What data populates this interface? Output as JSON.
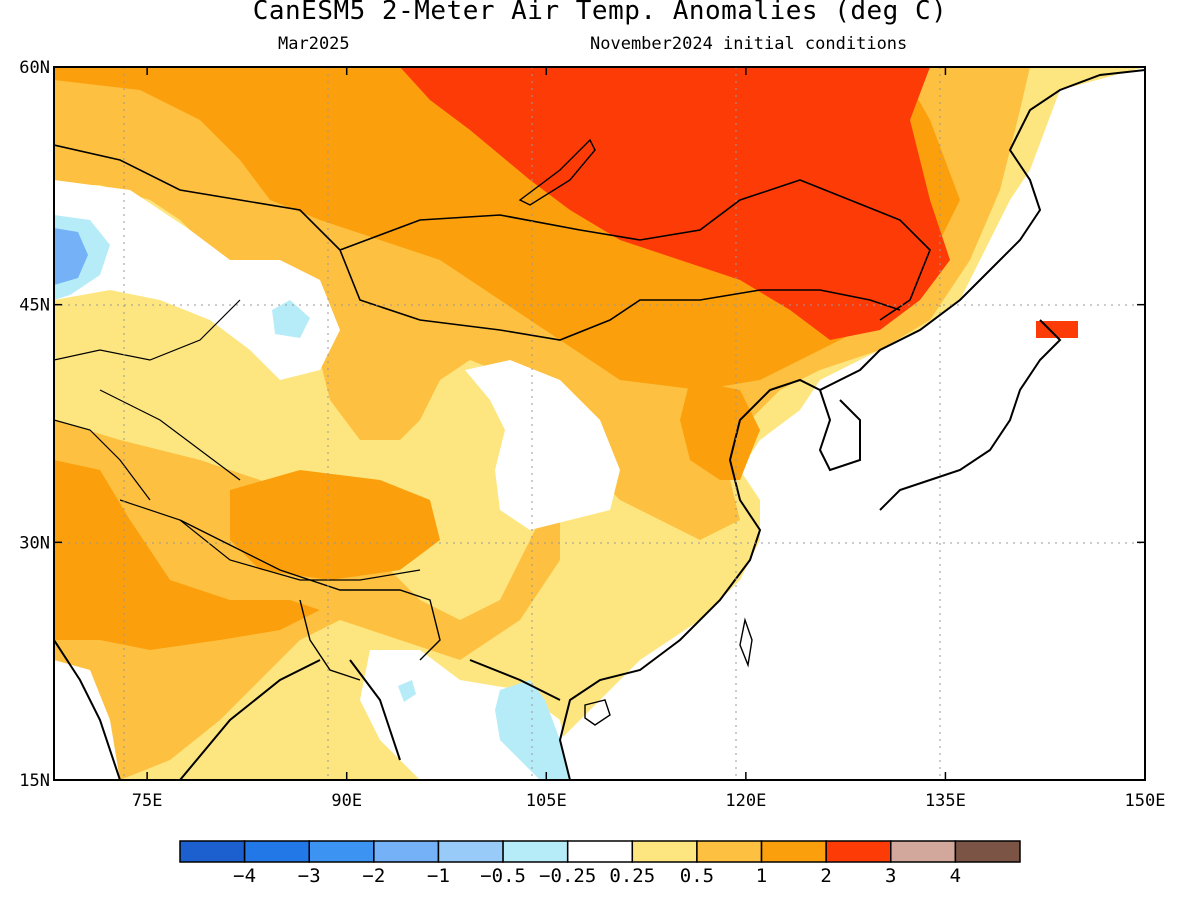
{
  "header": {
    "title": "CanESM5 2-Meter Air Temp. Anomalies (deg C)",
    "valid_month": "Mar2025",
    "initial_conditions": "November2024 initial conditions"
  },
  "map": {
    "lon_range": [
      68,
      150
    ],
    "lat_range": [
      15,
      60
    ],
    "lon_ticks": [
      {
        "value": 75,
        "label": "75E"
      },
      {
        "value": 90,
        "label": "90E"
      },
      {
        "value": 105,
        "label": "105E"
      },
      {
        "value": 120,
        "label": "120E"
      },
      {
        "value": 135,
        "label": "135E"
      },
      {
        "value": 150,
        "label": "150E"
      }
    ],
    "lat_ticks": [
      {
        "value": 60,
        "label": "60N"
      },
      {
        "value": 45,
        "label": "45N"
      },
      {
        "value": 30,
        "label": "30N"
      },
      {
        "value": 15,
        "label": "15N"
      }
    ],
    "gridlines": "dotted"
  },
  "colorbar": {
    "colors": [
      "#1c5fcf",
      "#2378e8",
      "#3c93f2",
      "#74b1f6",
      "#98cbf8",
      "#b6ecf8",
      "#ffffff",
      "#fde680",
      "#fdc040",
      "#fba00c",
      "#fd3b07",
      "#d2a89c",
      "#7c5446"
    ],
    "labels": [
      "-4",
      "-3",
      "-2",
      "-1",
      "-0.5",
      "-0.25",
      "0.25",
      "0.5",
      "1",
      "2",
      "3",
      "4"
    ]
  },
  "anomaly_colors": {
    "neg_medium": "#74b1f6",
    "neg_small": "#b6ecf8",
    "neutral": "#ffffff",
    "pos_025": "#fde680",
    "pos_05": "#fdc040",
    "pos_1": "#fba00c",
    "pos_2": "#fd3b07"
  }
}
